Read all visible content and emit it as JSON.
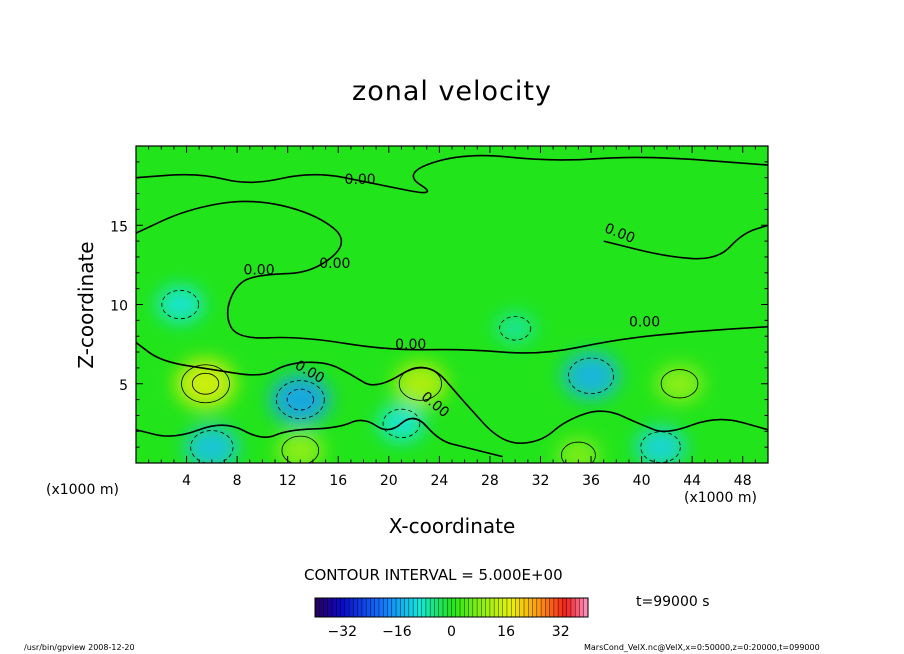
{
  "chart_data": {
    "type": "heatmap",
    "title": "zonal velocity",
    "xlabel": "X-coordinate",
    "ylabel": "Z-coordinate",
    "x_unit": "(x1000 m)",
    "y_unit": "(x1000 m)",
    "xlim": [
      0,
      50
    ],
    "ylim": [
      0,
      20
    ],
    "xticks": [
      4,
      8,
      12,
      16,
      20,
      24,
      28,
      32,
      36,
      40,
      44,
      48
    ],
    "yticks": [
      5,
      10,
      15
    ],
    "contour_label": "0.00",
    "contour_interval_text": "CONTOUR INTERVAL = 5.000E+00",
    "colorbar": {
      "min": -40,
      "max": 40,
      "ticks": [
        -32,
        -16,
        0,
        16,
        32
      ]
    },
    "time_text": "t=99000  s",
    "footer_left": "/usr/bin/gpview   2008-12-20",
    "footer_right": "MarsCond_VelX.nc@VelX,x=0:50000,z=0:20000,t=099000",
    "field_features": [
      {
        "x": 5.5,
        "z": 5.0,
        "u": 10
      },
      {
        "x": 22.5,
        "z": 5.0,
        "u": 8
      },
      {
        "x": 13.0,
        "z": 4.0,
        "u": -10
      },
      {
        "x": 36.0,
        "z": 5.5,
        "u": -9
      },
      {
        "x": 3.5,
        "z": 10.0,
        "u": -6
      },
      {
        "x": 6.0,
        "z": 1.0,
        "u": -8
      },
      {
        "x": 13.0,
        "z": 0.8,
        "u": 6
      },
      {
        "x": 41.5,
        "z": 1.0,
        "u": -7
      },
      {
        "x": 43.0,
        "z": 5.0,
        "u": 6
      },
      {
        "x": 30.0,
        "z": 8.5,
        "u": -4
      },
      {
        "x": 21.0,
        "z": 2.5,
        "u": -6
      },
      {
        "x": 35.0,
        "z": 0.5,
        "u": 5
      }
    ]
  }
}
